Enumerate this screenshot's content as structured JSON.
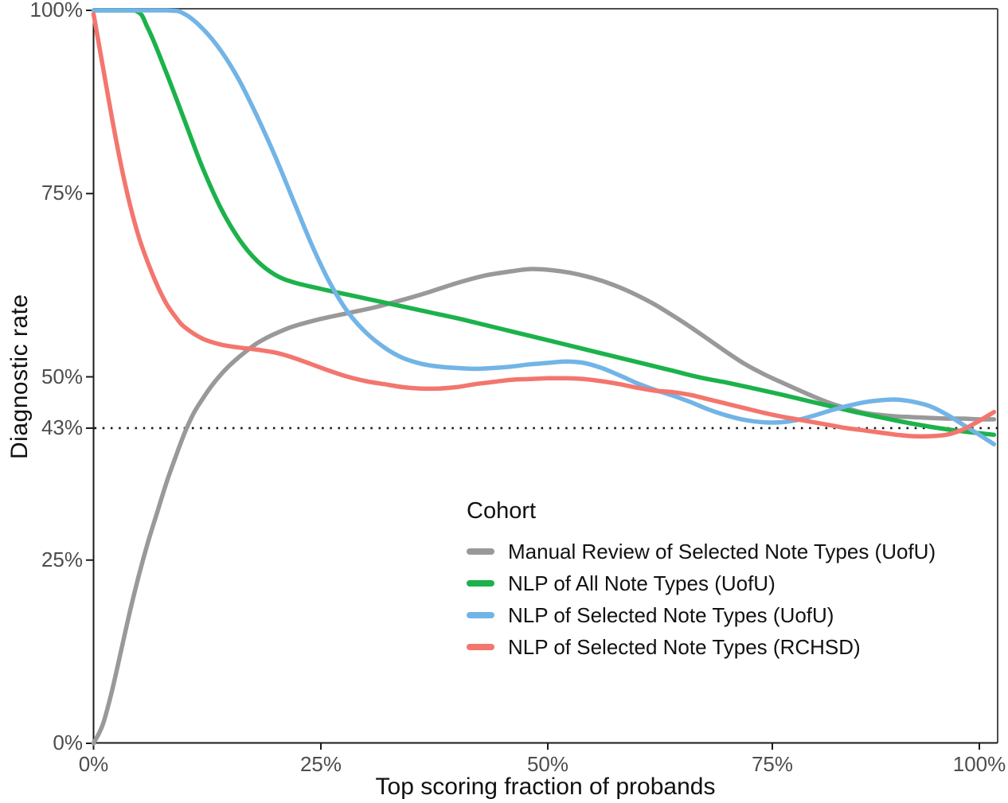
{
  "figure": {
    "y_axis": {
      "title": "Diagnostic rate",
      "ticks": [
        {
          "value": 100,
          "label": "100%"
        },
        {
          "value": 75,
          "label": "75%"
        },
        {
          "value": 50,
          "label": "50%"
        },
        {
          "value": 43,
          "label": "43%"
        },
        {
          "value": 25,
          "label": "25%"
        },
        {
          "value": 0,
          "label": "0%"
        }
      ]
    },
    "x_axis": {
      "title": "Top scoring fraction of probands",
      "ticks": [
        {
          "value": 0,
          "label": "0%"
        },
        {
          "value": 25,
          "label": "25%"
        },
        {
          "value": 50,
          "label": "50%"
        },
        {
          "value": 75,
          "label": "75%"
        },
        {
          "value": 100,
          "label": "100%"
        }
      ]
    },
    "legend": {
      "title": "Cohort",
      "position": "inside-bottom-right"
    },
    "colors": {
      "axis_text": "#4d4d4d",
      "axis_line": "#1a1a1a",
      "panel_border": "#4d4d4d",
      "reference_line": "#1a1a1a"
    }
  },
  "chart_data": {
    "type": "line",
    "title": "",
    "xlabel": "Top scoring fraction of probands",
    "ylabel": "Diagnostic rate",
    "xlim": [
      0,
      102.5
    ],
    "ylim": [
      0,
      100
    ],
    "x_unit": "percent",
    "y_unit": "percent",
    "grid": false,
    "legend_title": "Cohort",
    "reference_y": 43,
    "reference_style": "dotted",
    "series": [
      {
        "name": "Manual Review of Selected Note Types (UofU)",
        "color": "#999999",
        "points": [
          [
            0,
            0
          ],
          [
            1,
            2.5
          ],
          [
            2,
            7
          ],
          [
            3,
            12.5
          ],
          [
            4,
            18
          ],
          [
            5,
            23
          ],
          [
            6,
            27.5
          ],
          [
            7,
            31.5
          ],
          [
            8,
            35.5
          ],
          [
            9,
            39
          ],
          [
            10,
            42.3
          ],
          [
            11,
            45
          ],
          [
            12,
            47
          ],
          [
            13,
            48.8
          ],
          [
            14,
            50.3
          ],
          [
            15,
            51.6
          ],
          [
            16,
            52.7
          ],
          [
            17,
            53.7
          ],
          [
            18,
            54.6
          ],
          [
            19,
            55.3
          ],
          [
            20,
            55.9
          ],
          [
            22,
            56.9
          ],
          [
            25,
            57.9
          ],
          [
            28,
            58.7
          ],
          [
            31,
            59.5
          ],
          [
            34,
            60.5
          ],
          [
            37,
            61.6
          ],
          [
            40,
            62.8
          ],
          [
            43,
            63.8
          ],
          [
            46,
            64.4
          ],
          [
            48,
            64.7
          ],
          [
            50,
            64.6
          ],
          [
            52,
            64.3
          ],
          [
            54,
            63.8
          ],
          [
            56,
            63.1
          ],
          [
            58,
            62.2
          ],
          [
            60,
            61.1
          ],
          [
            62,
            59.8
          ],
          [
            64,
            58.3
          ],
          [
            66,
            56.7
          ],
          [
            68,
            55
          ],
          [
            70,
            53.3
          ],
          [
            72,
            51.7
          ],
          [
            74,
            50.4
          ],
          [
            76,
            49.3
          ],
          [
            78,
            48.3
          ],
          [
            80,
            47.3
          ],
          [
            82,
            46.4
          ],
          [
            84,
            45.7
          ],
          [
            86,
            45.1
          ],
          [
            88,
            44.8
          ],
          [
            90,
            44.6
          ],
          [
            92,
            44.5
          ],
          [
            94,
            44.4
          ],
          [
            96,
            44.3
          ],
          [
            98,
            44.3
          ],
          [
            100,
            44.2
          ],
          [
            102,
            44.2
          ]
        ]
      },
      {
        "name": "NLP of All Note Types (UofU)",
        "color": "#1cb24b",
        "points": [
          [
            0,
            100
          ],
          [
            4.5,
            100
          ],
          [
            6,
            97.5
          ],
          [
            8,
            91.5
          ],
          [
            10,
            85
          ],
          [
            12,
            78.5
          ],
          [
            14,
            73
          ],
          [
            16,
            68.8
          ],
          [
            18,
            65.8
          ],
          [
            20,
            63.9
          ],
          [
            22,
            62.9
          ],
          [
            25,
            62
          ],
          [
            28,
            61.2
          ],
          [
            31,
            60.4
          ],
          [
            34,
            59.6
          ],
          [
            37,
            58.8
          ],
          [
            40,
            58
          ],
          [
            43,
            57.1
          ],
          [
            46,
            56.2
          ],
          [
            49,
            55.3
          ],
          [
            52,
            54.4
          ],
          [
            55,
            53.5
          ],
          [
            58,
            52.6
          ],
          [
            61,
            51.7
          ],
          [
            64,
            50.8
          ],
          [
            67,
            49.9
          ],
          [
            70,
            49.2
          ],
          [
            73,
            48.4
          ],
          [
            76,
            47.6
          ],
          [
            79,
            46.8
          ],
          [
            82,
            46
          ],
          [
            85,
            45.2
          ],
          [
            88,
            44.5
          ],
          [
            91,
            43.8
          ],
          [
            94,
            43.2
          ],
          [
            97,
            42.7
          ],
          [
            100,
            42.3
          ],
          [
            102,
            42.1
          ]
        ]
      },
      {
        "name": "NLP of Selected Note Types (UofU)",
        "color": "#72b4e6",
        "points": [
          [
            0,
            100
          ],
          [
            8,
            100
          ],
          [
            10,
            99.5
          ],
          [
            12,
            97.5
          ],
          [
            14,
            94.5
          ],
          [
            16,
            90.5
          ],
          [
            18,
            85.5
          ],
          [
            20,
            80
          ],
          [
            22,
            74
          ],
          [
            24,
            68
          ],
          [
            26,
            62.8
          ],
          [
            28,
            58.8
          ],
          [
            30,
            56
          ],
          [
            32,
            54
          ],
          [
            34,
            52.6
          ],
          [
            36,
            51.8
          ],
          [
            38,
            51.4
          ],
          [
            40,
            51.2
          ],
          [
            42,
            51.1
          ],
          [
            44,
            51.2
          ],
          [
            46,
            51.4
          ],
          [
            48,
            51.7
          ],
          [
            50,
            51.9
          ],
          [
            52,
            52.1
          ],
          [
            54,
            51.9
          ],
          [
            56,
            51.2
          ],
          [
            58,
            50.2
          ],
          [
            60,
            49.1
          ],
          [
            62,
            48.2
          ],
          [
            64,
            47.4
          ],
          [
            66,
            46.5
          ],
          [
            68,
            45.5
          ],
          [
            70,
            44.7
          ],
          [
            72,
            44.1
          ],
          [
            74,
            43.8
          ],
          [
            76,
            43.8
          ],
          [
            78,
            44.1
          ],
          [
            80,
            44.7
          ],
          [
            82,
            45.4
          ],
          [
            84,
            46
          ],
          [
            86,
            46.5
          ],
          [
            88,
            46.8
          ],
          [
            90,
            46.9
          ],
          [
            92,
            46.6
          ],
          [
            94,
            46
          ],
          [
            96,
            44.9
          ],
          [
            98,
            43.5
          ],
          [
            100,
            42.1
          ],
          [
            102,
            40.8
          ]
        ]
      },
      {
        "name": "NLP of Selected Note Types (RCHSD)",
        "color": "#f3766e",
        "points": [
          [
            0,
            99.5
          ],
          [
            1,
            92.5
          ],
          [
            2,
            85.5
          ],
          [
            3,
            79
          ],
          [
            4,
            73.5
          ],
          [
            5,
            69
          ],
          [
            6,
            65.5
          ],
          [
            7,
            62.5
          ],
          [
            8,
            60
          ],
          [
            9,
            58.2
          ],
          [
            10,
            56.8
          ],
          [
            12,
            55.2
          ],
          [
            14,
            54.4
          ],
          [
            16,
            54
          ],
          [
            18,
            53.7
          ],
          [
            20,
            53.3
          ],
          [
            22,
            52.6
          ],
          [
            24,
            51.7
          ],
          [
            26,
            50.8
          ],
          [
            28,
            50
          ],
          [
            30,
            49.4
          ],
          [
            32,
            49
          ],
          [
            34,
            48.6
          ],
          [
            36,
            48.4
          ],
          [
            38,
            48.4
          ],
          [
            40,
            48.6
          ],
          [
            42,
            49
          ],
          [
            44,
            49.3
          ],
          [
            46,
            49.6
          ],
          [
            48,
            49.7
          ],
          [
            50,
            49.8
          ],
          [
            52,
            49.8
          ],
          [
            54,
            49.7
          ],
          [
            56,
            49.4
          ],
          [
            58,
            49
          ],
          [
            60,
            48.5
          ],
          [
            62,
            48.1
          ],
          [
            64,
            47.9
          ],
          [
            66,
            47.5
          ],
          [
            68,
            46.9
          ],
          [
            70,
            46.3
          ],
          [
            72,
            45.7
          ],
          [
            74,
            45.1
          ],
          [
            76,
            44.6
          ],
          [
            78,
            44.2
          ],
          [
            80,
            43.8
          ],
          [
            82,
            43.4
          ],
          [
            84,
            43
          ],
          [
            86,
            42.7
          ],
          [
            88,
            42.4
          ],
          [
            90,
            42.1
          ],
          [
            92,
            41.9
          ],
          [
            94,
            41.9
          ],
          [
            96,
            42.1
          ],
          [
            98,
            42.8
          ],
          [
            100,
            44
          ],
          [
            102,
            45.2
          ]
        ]
      }
    ]
  }
}
